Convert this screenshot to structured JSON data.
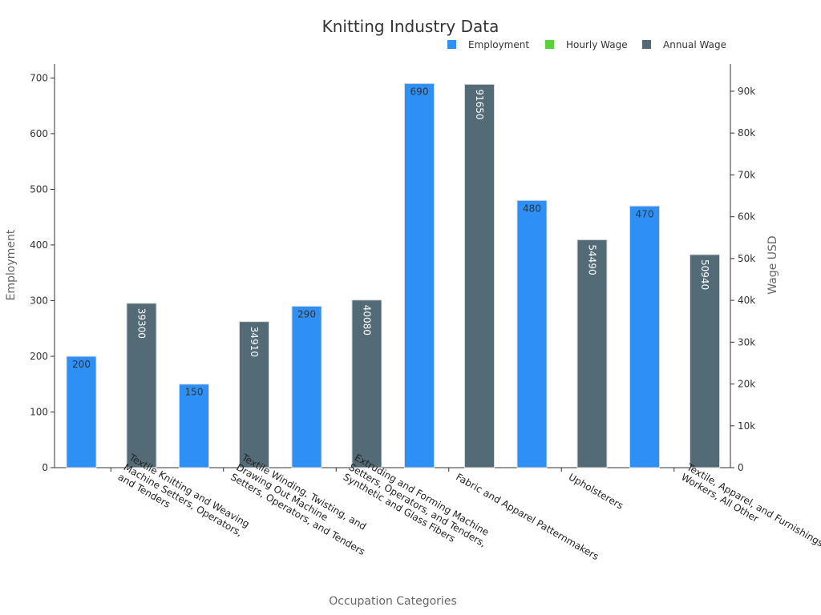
{
  "chart_data": {
    "type": "bar",
    "title": "Knitting Industry Data",
    "xlabel": "Occupation Categories",
    "ylabel": "Employment",
    "y2label": "Wage USD",
    "ylim": [
      0,
      725
    ],
    "y2lim": [
      0,
      96500
    ],
    "yticks": [
      "0",
      "100",
      "200",
      "300",
      "400",
      "500",
      "600",
      "700"
    ],
    "y2ticks": [
      "0",
      "10k",
      "20k",
      "30k",
      "40k",
      "50k",
      "60k",
      "70k",
      "80k",
      "90k"
    ],
    "legend_position": "top-right",
    "categories": [
      [
        "Textile Knitting and Weaving",
        "Machine Setters, Operators,",
        "and Tenders"
      ],
      [
        "Textile Winding, Twisting, and",
        "Drawing Out Machine",
        "Setters, Operators, and Tenders"
      ],
      [
        "Extruding and Forming Machine",
        "Setters, Operators, and Tenders,",
        "Synthetic and Glass Fibers"
      ],
      [
        "Fabric and Apparel Patternmakers"
      ],
      [
        "Upholsterers"
      ],
      [
        "Textile, Apparel, and Furnishings",
        "Workers, All Other"
      ]
    ],
    "series": [
      {
        "name": "Employment",
        "axis": "left",
        "color": "#2e90f4",
        "values": [
          200,
          150,
          290,
          690,
          480,
          470
        ],
        "labels": [
          "200",
          "150",
          "290",
          "690",
          "480",
          "470"
        ]
      },
      {
        "name": "Hourly Wage",
        "axis": "right",
        "color": "#5ad13a",
        "values": [
          null,
          null,
          null,
          null,
          null,
          null
        ],
        "labels": []
      },
      {
        "name": "Annual Wage",
        "axis": "right",
        "color": "#536b76",
        "values": [
          39300,
          34910,
          40080,
          91650,
          54490,
          50940
        ],
        "labels": [
          "39300",
          "34910",
          "40080",
          "91650",
          "54490",
          "50940"
        ]
      }
    ]
  }
}
